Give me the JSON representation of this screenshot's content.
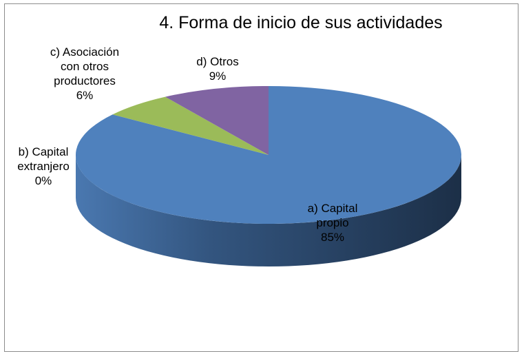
{
  "chart_data": {
    "type": "pie",
    "title": "4. Forma de inicio de sus actividades",
    "categories": [
      "a) Capital propio",
      "b) Capital extranjero",
      "c) Asociación con otros productores",
      "d) Otros"
    ],
    "values": [
      85,
      0,
      6,
      9
    ],
    "value_labels": [
      "85%",
      "0%",
      "6%",
      "9%"
    ],
    "colors": [
      "#4f81bd",
      "#c0504d",
      "#9bbb59",
      "#8064a2"
    ]
  }
}
